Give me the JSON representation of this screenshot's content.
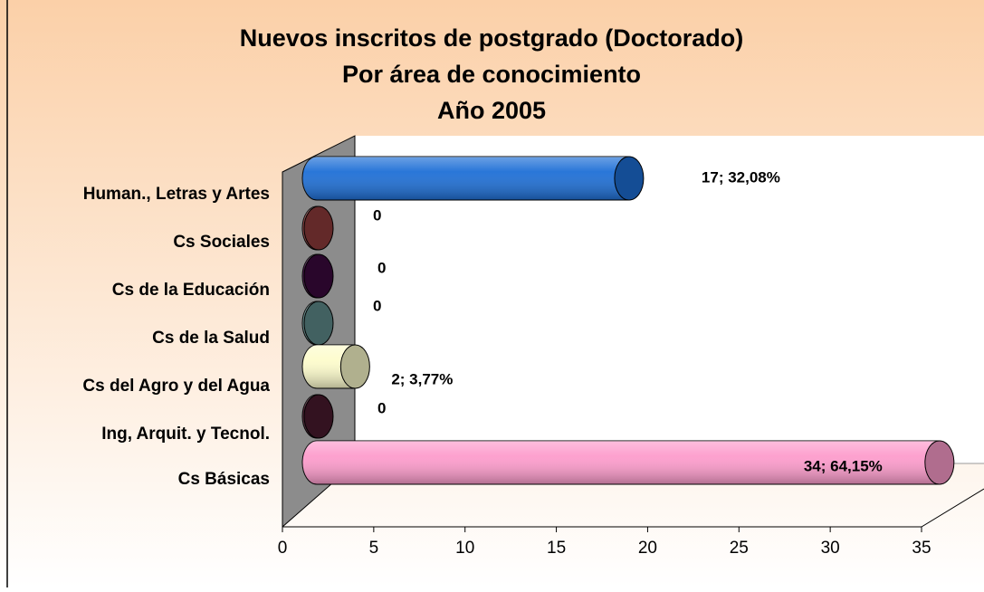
{
  "chart_data": {
    "type": "bar",
    "orientation": "horizontal",
    "title": "Nuevos inscritos de postgrado (Doctorado)",
    "subtitle": [
      "Por área de conocimiento",
      "Año 2005"
    ],
    "categories": [
      "Human., Letras y Artes",
      "Cs Sociales",
      "Cs de la Educación",
      "Cs de la Salud",
      "Cs del Agro y del Agua",
      "Ing, Arquit. y Tecnol.",
      "Cs Básicas"
    ],
    "values": [
      17,
      0,
      0,
      0,
      2,
      0,
      34
    ],
    "value_labels": [
      "17; 32,08%",
      "0",
      "0",
      "0",
      "2; 3,77%",
      "0",
      "34; 64,15%"
    ],
    "colors": [
      "#1e6fd6",
      "#8e3b3b",
      "#3c0a3e",
      "#5f8b8b",
      "#fdfccc",
      "#4a1a2e",
      "#fd9ccc"
    ],
    "xlim": [
      0,
      35
    ],
    "xticks": [
      0,
      5,
      10,
      15,
      20,
      25,
      30,
      35
    ]
  }
}
